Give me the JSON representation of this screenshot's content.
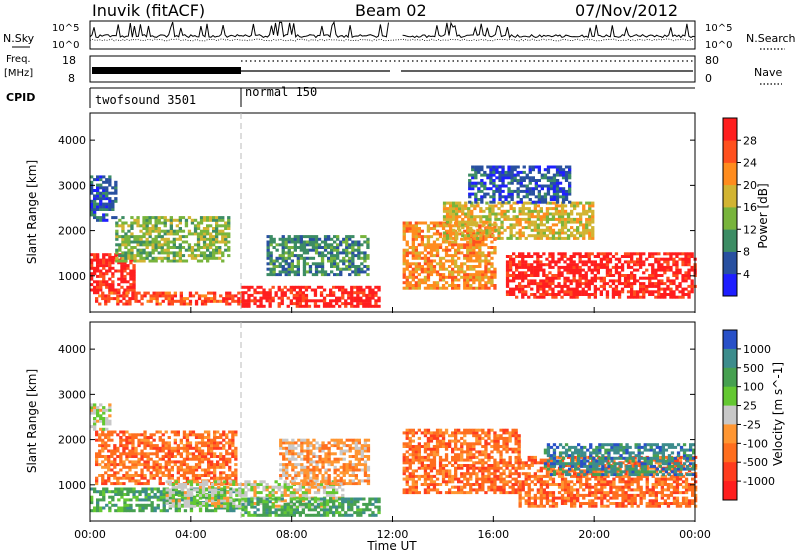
{
  "header": {
    "station": "Inuvik (fitACF)",
    "beam": "Beam 02",
    "date": "07/Nov/2012"
  },
  "side_labels": {
    "nsky": "N.Sky",
    "nsearch": "N.Search",
    "freq_line1": "Freq.",
    "freq_line2": "[MHz]",
    "nave": "Nave",
    "cpid": "CPID"
  },
  "noise_panel": {
    "left_ticks": [
      "10^5",
      "10^0"
    ],
    "right_ticks": [
      "10^5",
      "10^0"
    ]
  },
  "freq_panel": {
    "left_ticks": [
      "18",
      "8"
    ],
    "right_ticks": [
      "80",
      "0"
    ]
  },
  "cpid_panel": {
    "segments": [
      {
        "label": "twofsound 3501",
        "start_hour": 0,
        "end_hour": 6
      },
      {
        "label": "normal 150",
        "start_hour": 6,
        "end_hour": 24
      }
    ]
  },
  "axes": {
    "x_ticks": [
      "00:00",
      "04:00",
      "08:00",
      "12:00",
      "16:00",
      "20:00",
      "00:00"
    ],
    "x_tick_hours": [
      0,
      4,
      8,
      12,
      16,
      20,
      24
    ],
    "xlabel": "Time UT",
    "ylabel": "Slant Range [km]",
    "y_ticks": [
      "1000",
      "2000",
      "3000",
      "4000"
    ],
    "y_tick_values": [
      1000,
      2000,
      3000,
      4000
    ],
    "ylim": [
      200,
      4600
    ],
    "xlim_hours": [
      0,
      24
    ]
  },
  "colorbars": {
    "power": {
      "title": "Power [dB]",
      "labels": [
        "4",
        "8",
        "12",
        "16",
        "20",
        "24",
        "28"
      ],
      "colors": [
        "#1e1eff",
        "#2850a0",
        "#3c8c64",
        "#78b43c",
        "#d2b432",
        "#ff8c1e",
        "#ff501e",
        "#ff1e1e"
      ]
    },
    "velocity": {
      "title": "Velocity [m s^-1]",
      "labels": [
        "1000",
        "500",
        "100",
        "25",
        "-25",
        "-100",
        "-500",
        "-1000"
      ],
      "colors": [
        "#2850c8",
        "#3c8c8c",
        "#46a050",
        "#64c832",
        "#c8c8c8",
        "#ff9632",
        "#ff6e1e",
        "#ff3c1e",
        "#ff1e1e"
      ]
    }
  },
  "chart_data": [
    {
      "type": "heatmap",
      "name": "power",
      "xlabel": "Time UT",
      "ylabel": "Slant Range [km]",
      "x_unit": "hour UT",
      "ylim": [
        200,
        4600
      ],
      "regions": [
        {
          "t0": 0.0,
          "t1": 1.8,
          "r0": 600,
          "r1": 1500,
          "level": 7
        },
        {
          "t0": 0.2,
          "t1": 6.0,
          "r0": 350,
          "r1": 650,
          "level": 6
        },
        {
          "t0": 1.0,
          "t1": 5.5,
          "r0": 1300,
          "r1": 2300,
          "level": 3
        },
        {
          "t0": 6.0,
          "t1": 11.5,
          "r0": 300,
          "r1": 750,
          "level": 7
        },
        {
          "t0": 7.0,
          "t1": 11.0,
          "r0": 1000,
          "r1": 1900,
          "level": 2
        },
        {
          "t0": 12.4,
          "t1": 16.0,
          "r0": 700,
          "r1": 2200,
          "level": 5
        },
        {
          "t0": 16.5,
          "t1": 24.0,
          "r0": 500,
          "r1": 1500,
          "level": 7
        },
        {
          "t0": 14.0,
          "t1": 20.0,
          "r0": 1800,
          "r1": 2600,
          "level": 4
        },
        {
          "t0": 0.0,
          "t1": 1.0,
          "r0": 2200,
          "r1": 3200,
          "level": 1
        },
        {
          "t0": 15.0,
          "t1": 19.0,
          "r0": 2600,
          "r1": 3400,
          "level": 1
        }
      ]
    },
    {
      "type": "heatmap",
      "name": "velocity",
      "xlabel": "Time UT",
      "ylabel": "Slant Range [km]",
      "x_unit": "hour UT",
      "ylim": [
        200,
        4600
      ],
      "regions": [
        {
          "t0": 0.2,
          "t1": 5.8,
          "r0": 1000,
          "r1": 2200,
          "level": 6
        },
        {
          "t0": 0.0,
          "t1": 6.0,
          "r0": 400,
          "r1": 900,
          "level": 2
        },
        {
          "t0": 3.0,
          "t1": 10.0,
          "r0": 500,
          "r1": 1100,
          "level": 4
        },
        {
          "t0": 6.0,
          "t1": 11.5,
          "r0": 300,
          "r1": 700,
          "level": 2
        },
        {
          "t0": 7.5,
          "t1": 11.0,
          "r0": 1000,
          "r1": 2000,
          "level": 5
        },
        {
          "t0": 12.4,
          "t1": 17.0,
          "r0": 800,
          "r1": 2200,
          "level": 6
        },
        {
          "t0": 17.0,
          "t1": 24.0,
          "r0": 500,
          "r1": 1600,
          "level": 6
        },
        {
          "t0": 18.0,
          "t1": 24.0,
          "r0": 1200,
          "r1": 1900,
          "level": 1
        },
        {
          "t0": 0.0,
          "t1": 0.8,
          "r0": 2200,
          "r1": 2800,
          "level": 4
        }
      ]
    }
  ]
}
